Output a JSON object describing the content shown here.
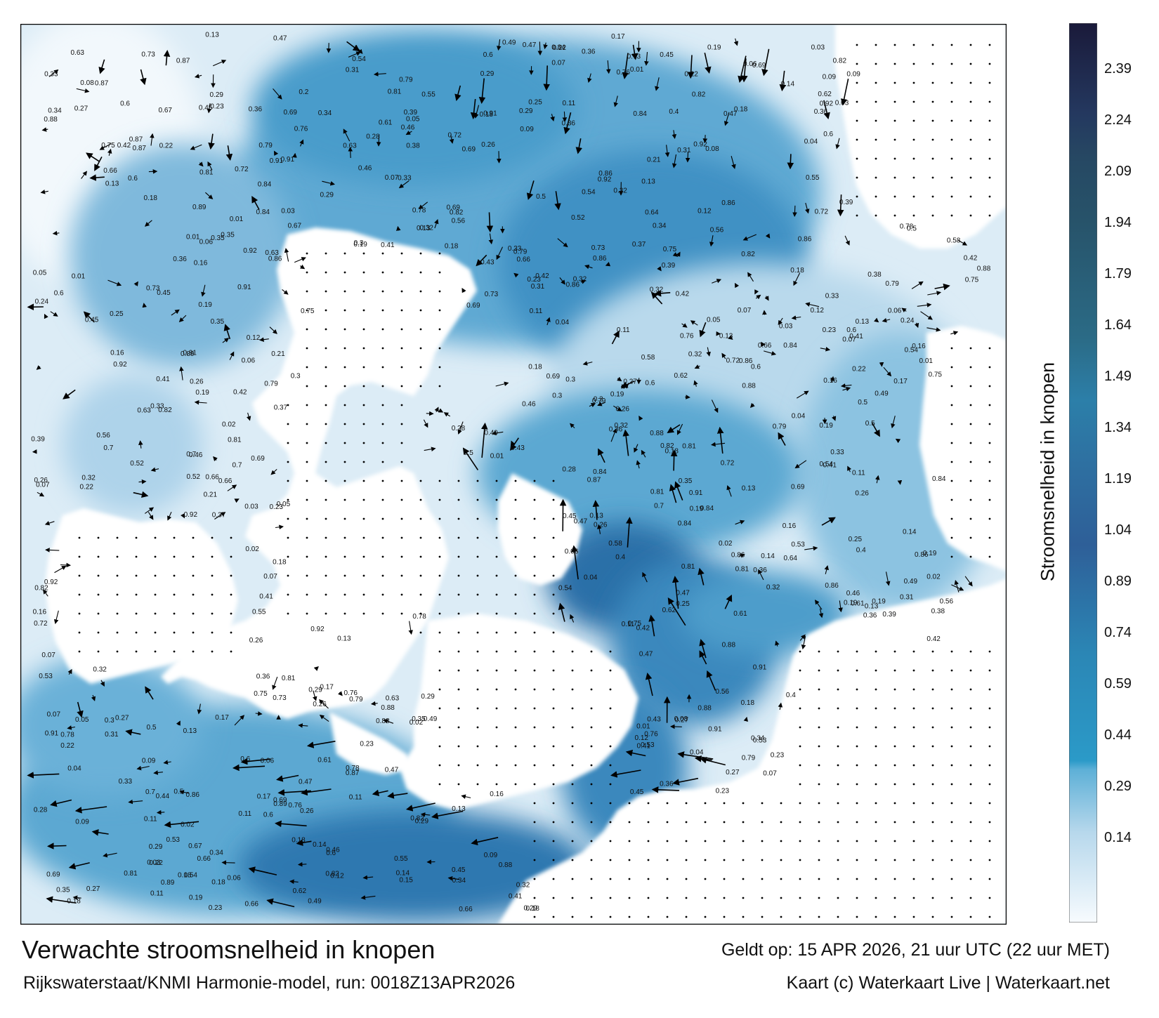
{
  "title": "Verwachte stroomsnelheid in knopen",
  "valid_time": "Geldt op: 15 APR 2026, 21 uur UTC (22 uur MET)",
  "model_run": "Rijkswaterstaat/KNMI Harmonie-model, run: 0018Z13APR2026",
  "copyright": "Kaart (c) Waterkaart Live | Waterkaart.net",
  "colorbar": {
    "label": "Stroomsnelheid in knopen",
    "ticks": [
      "2.39",
      "2.24",
      "2.09",
      "1.94",
      "1.79",
      "1.64",
      "1.49",
      "1.34",
      "1.19",
      "1.04",
      "0.89",
      "0.74",
      "0.59",
      "0.44",
      "0.29",
      "0.14"
    ],
    "colors": [
      "#f6fafd",
      "#dceaf4",
      "#c0dbec",
      "#96c7e0",
      "#5fb1d6",
      "#2f9cc8",
      "#2c87b5",
      "#2e79a8",
      "#2f6d9f",
      "#2f5f98",
      "#2f528c",
      "#2d6287",
      "#28556f",
      "#274a5e",
      "#253b63",
      "#1b1d3c"
    ]
  },
  "map": {
    "land_color": "#ffffff",
    "water_light": "#eaf3fa",
    "water_mid": "#6bb3d8",
    "water_dark": "#2a6fa8",
    "arrow_color": "#000000"
  },
  "speed_labels": [
    "0.14",
    "0.2",
    "0.16",
    "0.08",
    "0.13",
    "0.12",
    "0.11",
    "0.04",
    "0.18",
    "0.09",
    "0.05",
    "0.06",
    "0.07",
    "0.02",
    "0.01",
    "0.15",
    "0.17",
    "0.21",
    "0.24",
    "0.28",
    "0.32",
    "0.36",
    "0.41",
    "0.43",
    "0.45",
    "0.52",
    "0.29",
    "0.33",
    "0.38",
    "0.54",
    "0.62",
    "0.44",
    "0.39",
    "0.31",
    "0.47",
    "0.25",
    "0.27",
    "0.22",
    "0.19",
    "0.03",
    "0.23",
    "0.26",
    "0.34",
    "0.37",
    "0.42",
    "0.49",
    "0.55",
    "0.58",
    "0.61",
    "0.64",
    "0.67",
    "0.7",
    "0.72",
    "0.75",
    "0.78",
    "0.82",
    "0.84",
    "0.87",
    "0.91",
    "0.92",
    "0.35",
    "0.3",
    "0.4",
    "0.46",
    "0.5",
    "0.53",
    "0.56",
    "0.6",
    "0.63",
    "0.66",
    "0.69",
    "0.73",
    "0.76",
    "0.79",
    "0.81",
    "0.86",
    "0.88",
    "0.89"
  ]
}
